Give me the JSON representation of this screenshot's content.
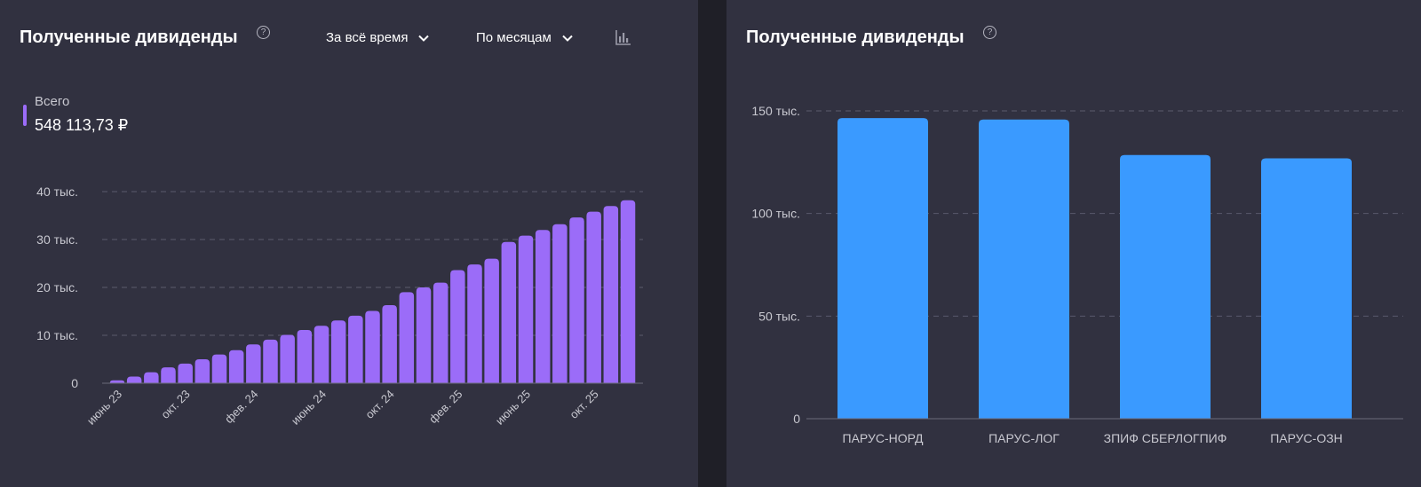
{
  "left": {
    "title": "Полученные дивиденды",
    "help": "?",
    "period_dropdown": "За всё время",
    "grouping_dropdown": "По месяцам",
    "chart_type_icon": "bar-chart-icon",
    "total_label": "Всего",
    "total_value": "548 113,73 ₽",
    "accent_color": "#9b6cf8"
  },
  "right": {
    "title": "Полученные дивиденды",
    "help": "?",
    "accent_color": "#3a9aff"
  },
  "chart_data": [
    {
      "type": "bar",
      "title": "Полученные дивиденды",
      "ylim": [
        0,
        40000
      ],
      "y_ticks": [
        0,
        10000,
        20000,
        30000,
        40000
      ],
      "y_tick_labels": [
        "0",
        "10 тыс.",
        "20 тыс.",
        "30 тыс.",
        "40 тыс."
      ],
      "x_tick_labels": [
        "июнь 23",
        "окт. 23",
        "фев. 24",
        "июнь 24",
        "окт. 24",
        "фев. 25",
        "июнь 25",
        "окт. 25"
      ],
      "x_tick_bar_index": [
        0,
        4,
        8,
        12,
        16,
        20,
        24,
        28
      ],
      "values": [
        600,
        1400,
        2300,
        3300,
        4100,
        5000,
        6000,
        6900,
        8100,
        9100,
        10100,
        11100,
        12000,
        13100,
        14100,
        15100,
        16300,
        19000,
        20000,
        21000,
        23600,
        24800,
        26000,
        29500,
        30800,
        32000,
        33200,
        34600,
        35800,
        37000,
        38200
      ],
      "color": "#9b6cf8",
      "grid": true
    },
    {
      "type": "bar",
      "title": "Полученные дивиденды",
      "ylim": [
        0,
        150000
      ],
      "y_ticks": [
        0,
        50000,
        100000,
        150000
      ],
      "y_tick_labels": [
        "0",
        "50 тыс.",
        "100 тыс.",
        "150 тыс."
      ],
      "categories": [
        "ПАРУС-НОРД",
        "ПАРУС-ЛОГ",
        "ЗПИФ СБЕРЛОГПИФ",
        "ПАРУС-ОЗН"
      ],
      "values": [
        146500,
        145800,
        128500,
        126900
      ],
      "color": "#3a9aff",
      "grid": true
    }
  ]
}
